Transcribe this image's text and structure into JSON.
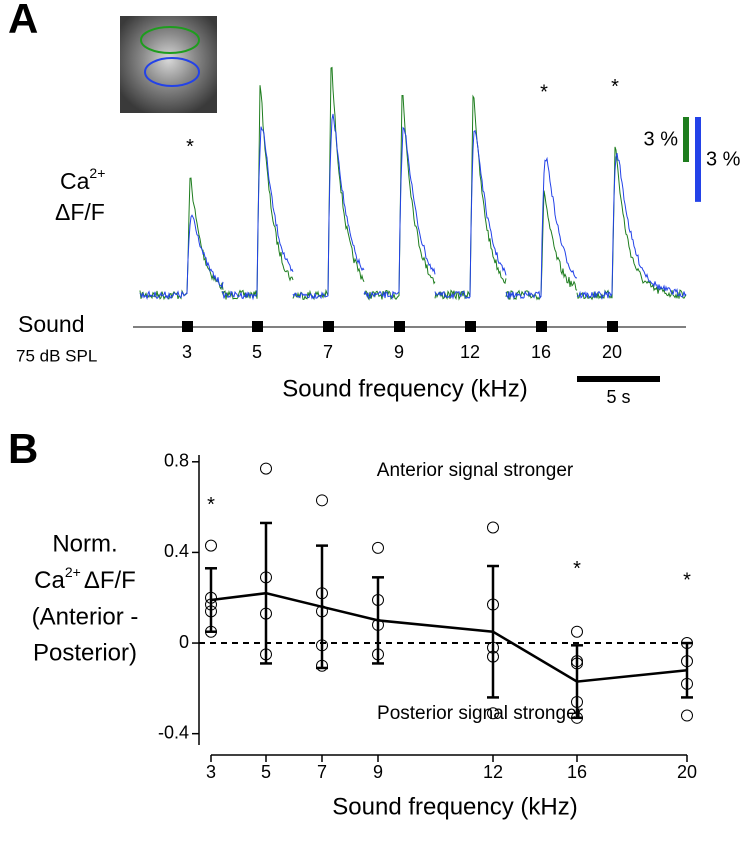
{
  "chart_data": [
    {
      "type": "trace",
      "panel": "A",
      "ylabel": {
        "base": "Ca",
        "sup": "2+",
        "line2": "ΔF/F"
      },
      "stimulus_label": "Sound",
      "stimulus_level": "75 dB SPL",
      "categories": [
        "3",
        "5",
        "7",
        "9",
        "12",
        "16",
        "20"
      ],
      "xlabel": "Sound frequency (kHz)",
      "marker": "*",
      "marked": [
        0,
        5,
        6
      ],
      "series": [
        {
          "color": "#1e7d1e",
          "values": [
            7.7,
            13.7,
            15,
            13.3,
            13.3,
            6.7,
            9.7
          ],
          "scale_bar": {
            "value": 3,
            "label": "3 %"
          }
        },
        {
          "color": "#2342e8",
          "values": [
            3.5,
            7.4,
            7.8,
            7.3,
            7.2,
            6,
            6.2
          ],
          "scale_bar": {
            "value": 3,
            "label": "3 %"
          }
        }
      ],
      "time_bar": {
        "value": 5,
        "label": "5 s"
      }
    },
    {
      "type": "line",
      "panel": "B",
      "ylabel": {
        "line1": "Norm.",
        "base": "Ca",
        "sup": "2+",
        "rest": "ΔF/F",
        "line3": "(Anterior -",
        "line4": "Posterior)"
      },
      "categories": [
        "3",
        "5",
        "7",
        "9",
        "12",
        "16",
        "20"
      ],
      "values": [
        0.19,
        0.22,
        0.16,
        0.1,
        0.05,
        -0.17,
        -0.12
      ],
      "errors": [
        0.14,
        0.31,
        0.27,
        0.19,
        0.29,
        0.16,
        0.12
      ],
      "points": [
        [
          0.43,
          0.2,
          0.17,
          0.14,
          0.05
        ],
        [
          0.77,
          0.29,
          0.13,
          -0.05
        ],
        [
          0.63,
          0.22,
          0.14,
          -0.01,
          -0.1
        ],
        [
          0.42,
          0.19,
          0.08,
          -0.05
        ],
        [
          0.51,
          0.17,
          -0.02,
          -0.06,
          -0.31
        ],
        [
          0.05,
          -0.08,
          -0.09,
          -0.26,
          -0.33
        ],
        [
          0,
          -0.08,
          -0.18,
          -0.32
        ]
      ],
      "ylim": [
        -0.45,
        0.83
      ],
      "yticks": [
        0.8,
        0.4,
        0,
        -0.4
      ],
      "reference_line": 0,
      "annotations": [
        "Anterior signal stronger",
        "Posterior signal stronger"
      ],
      "xlabel": "Sound frequency (kHz)",
      "marker": "*",
      "marked": [
        0,
        5,
        6
      ],
      "color": "#000000"
    }
  ]
}
